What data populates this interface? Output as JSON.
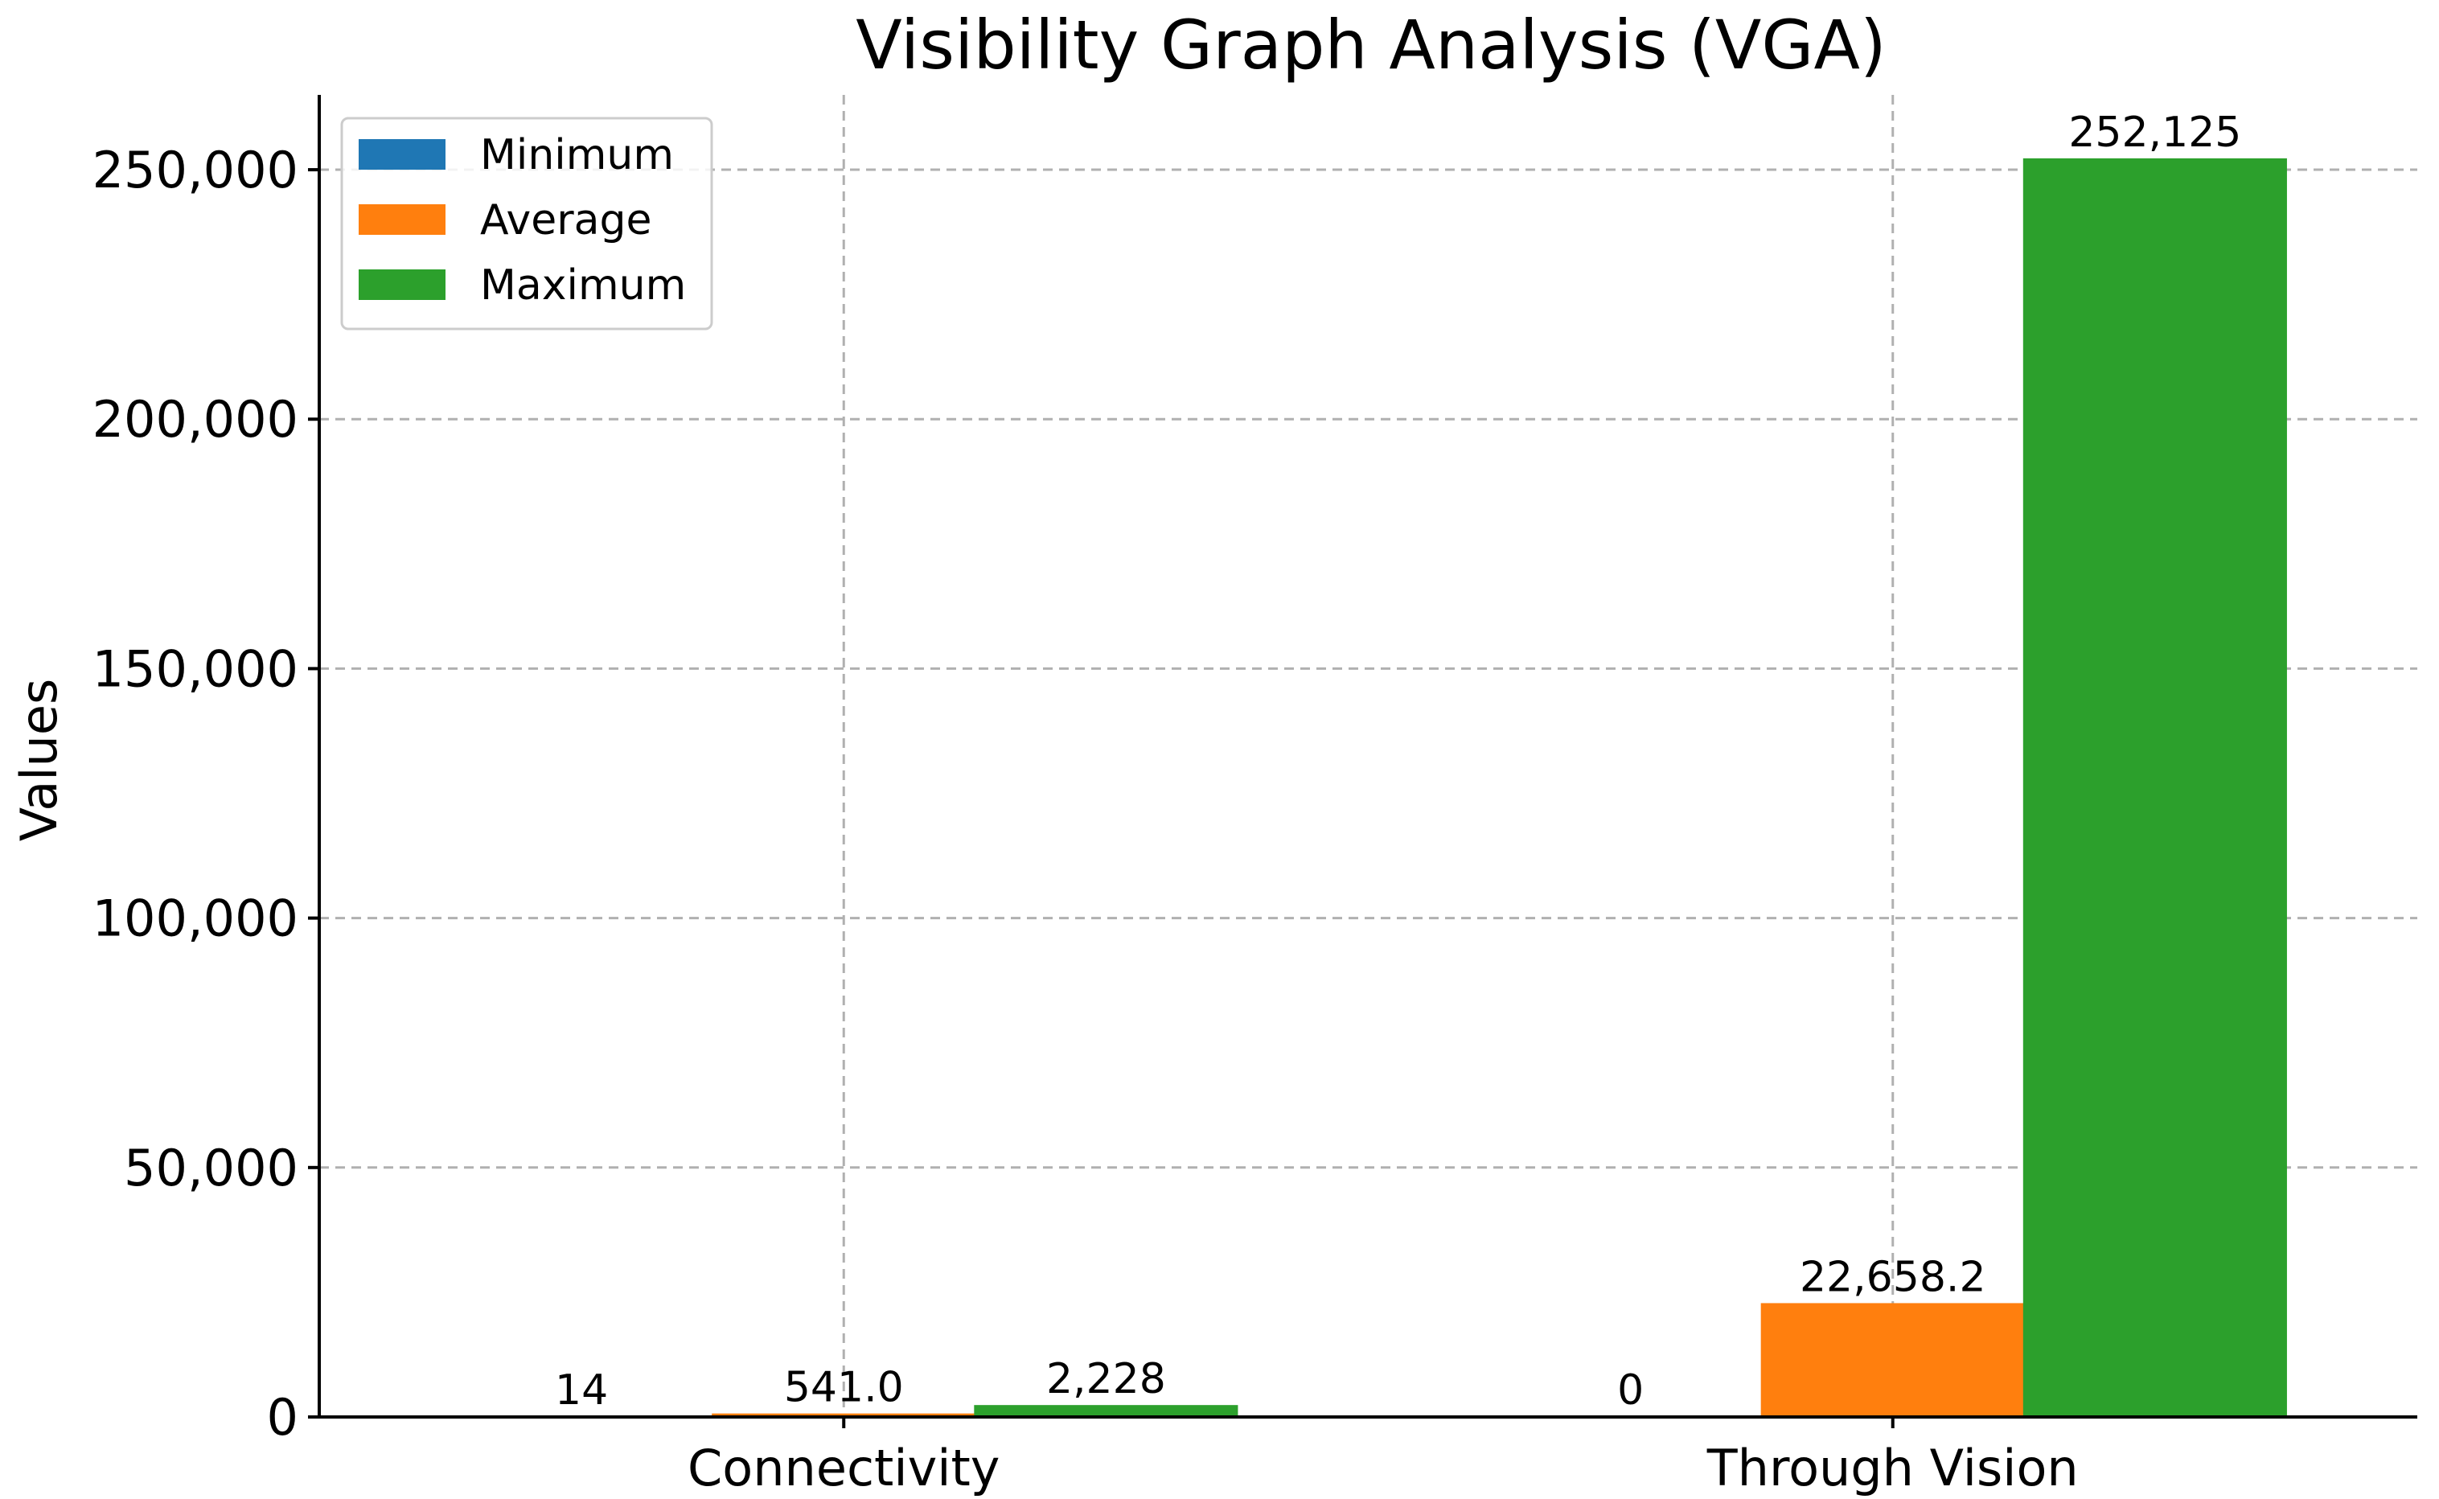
{
  "chart_data": {
    "type": "bar",
    "title": "Visibility Graph Analysis (VGA)",
    "xlabel": "",
    "ylabel": "Values",
    "categories": [
      "Connectivity",
      "Through Vision"
    ],
    "series": [
      {
        "name": "Minimum",
        "color": "#1f77b4",
        "values": [
          14,
          0
        ],
        "labels": [
          "14",
          "0"
        ]
      },
      {
        "name": "Average",
        "color": "#ff7f0e",
        "values": [
          541.0,
          22658.2
        ],
        "labels": [
          "541.0",
          "22,658.2"
        ]
      },
      {
        "name": "Maximum",
        "color": "#2ca02c",
        "values": [
          2228,
          252125
        ],
        "labels": [
          "2,228",
          "252,125"
        ]
      }
    ],
    "ylim": [
      0,
      265000
    ],
    "yticks": [
      0,
      50000,
      100000,
      150000,
      200000,
      250000
    ],
    "ytick_labels": [
      "0",
      "50,000",
      "100,000",
      "150,000",
      "200,000",
      "250,000"
    ],
    "grid": true,
    "legend_position": "top-left"
  }
}
